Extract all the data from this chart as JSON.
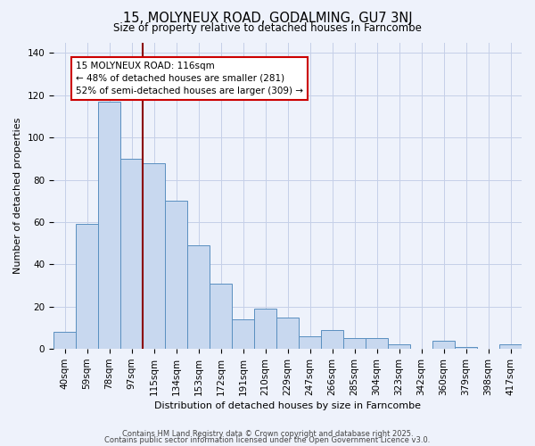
{
  "title": "15, MOLYNEUX ROAD, GODALMING, GU7 3NJ",
  "subtitle": "Size of property relative to detached houses in Farncombe",
  "xlabel": "Distribution of detached houses by size in Farncombe",
  "ylabel": "Number of detached properties",
  "categories": [
    "40sqm",
    "59sqm",
    "78sqm",
    "97sqm",
    "115sqm",
    "134sqm",
    "153sqm",
    "172sqm",
    "191sqm",
    "210sqm",
    "229sqm",
    "247sqm",
    "266sqm",
    "285sqm",
    "304sqm",
    "323sqm",
    "342sqm",
    "360sqm",
    "379sqm",
    "398sqm",
    "417sqm"
  ],
  "values": [
    8,
    59,
    117,
    90,
    88,
    70,
    49,
    31,
    14,
    19,
    15,
    6,
    9,
    5,
    5,
    2,
    0,
    4,
    1,
    0,
    2
  ],
  "bar_color": "#c8d8ef",
  "bar_edge_color": "#5a8fc0",
  "highlight_line_index": 4,
  "highlight_line_color": "#8b0000",
  "annotation_line1": "15 MOLYNEUX ROAD: 116sqm",
  "annotation_line2": "← 48% of detached houses are smaller (281)",
  "annotation_line3": "52% of semi-detached houses are larger (309) →",
  "annotation_box_color": "#ffffff",
  "annotation_box_edge_color": "#cc0000",
  "ylim": [
    0,
    145
  ],
  "yticks": [
    0,
    20,
    40,
    60,
    80,
    100,
    120,
    140
  ],
  "footer1": "Contains HM Land Registry data © Crown copyright and database right 2025.",
  "footer2": "Contains public sector information licensed under the Open Government Licence v3.0.",
  "background_color": "#eef2fb",
  "grid_color": "#c5cfe8",
  "title_fontsize": 10.5,
  "subtitle_fontsize": 8.5,
  "axis_label_fontsize": 8,
  "tick_fontsize": 7.5,
  "annotation_fontsize": 7.5,
  "footer_fontsize": 6.0
}
